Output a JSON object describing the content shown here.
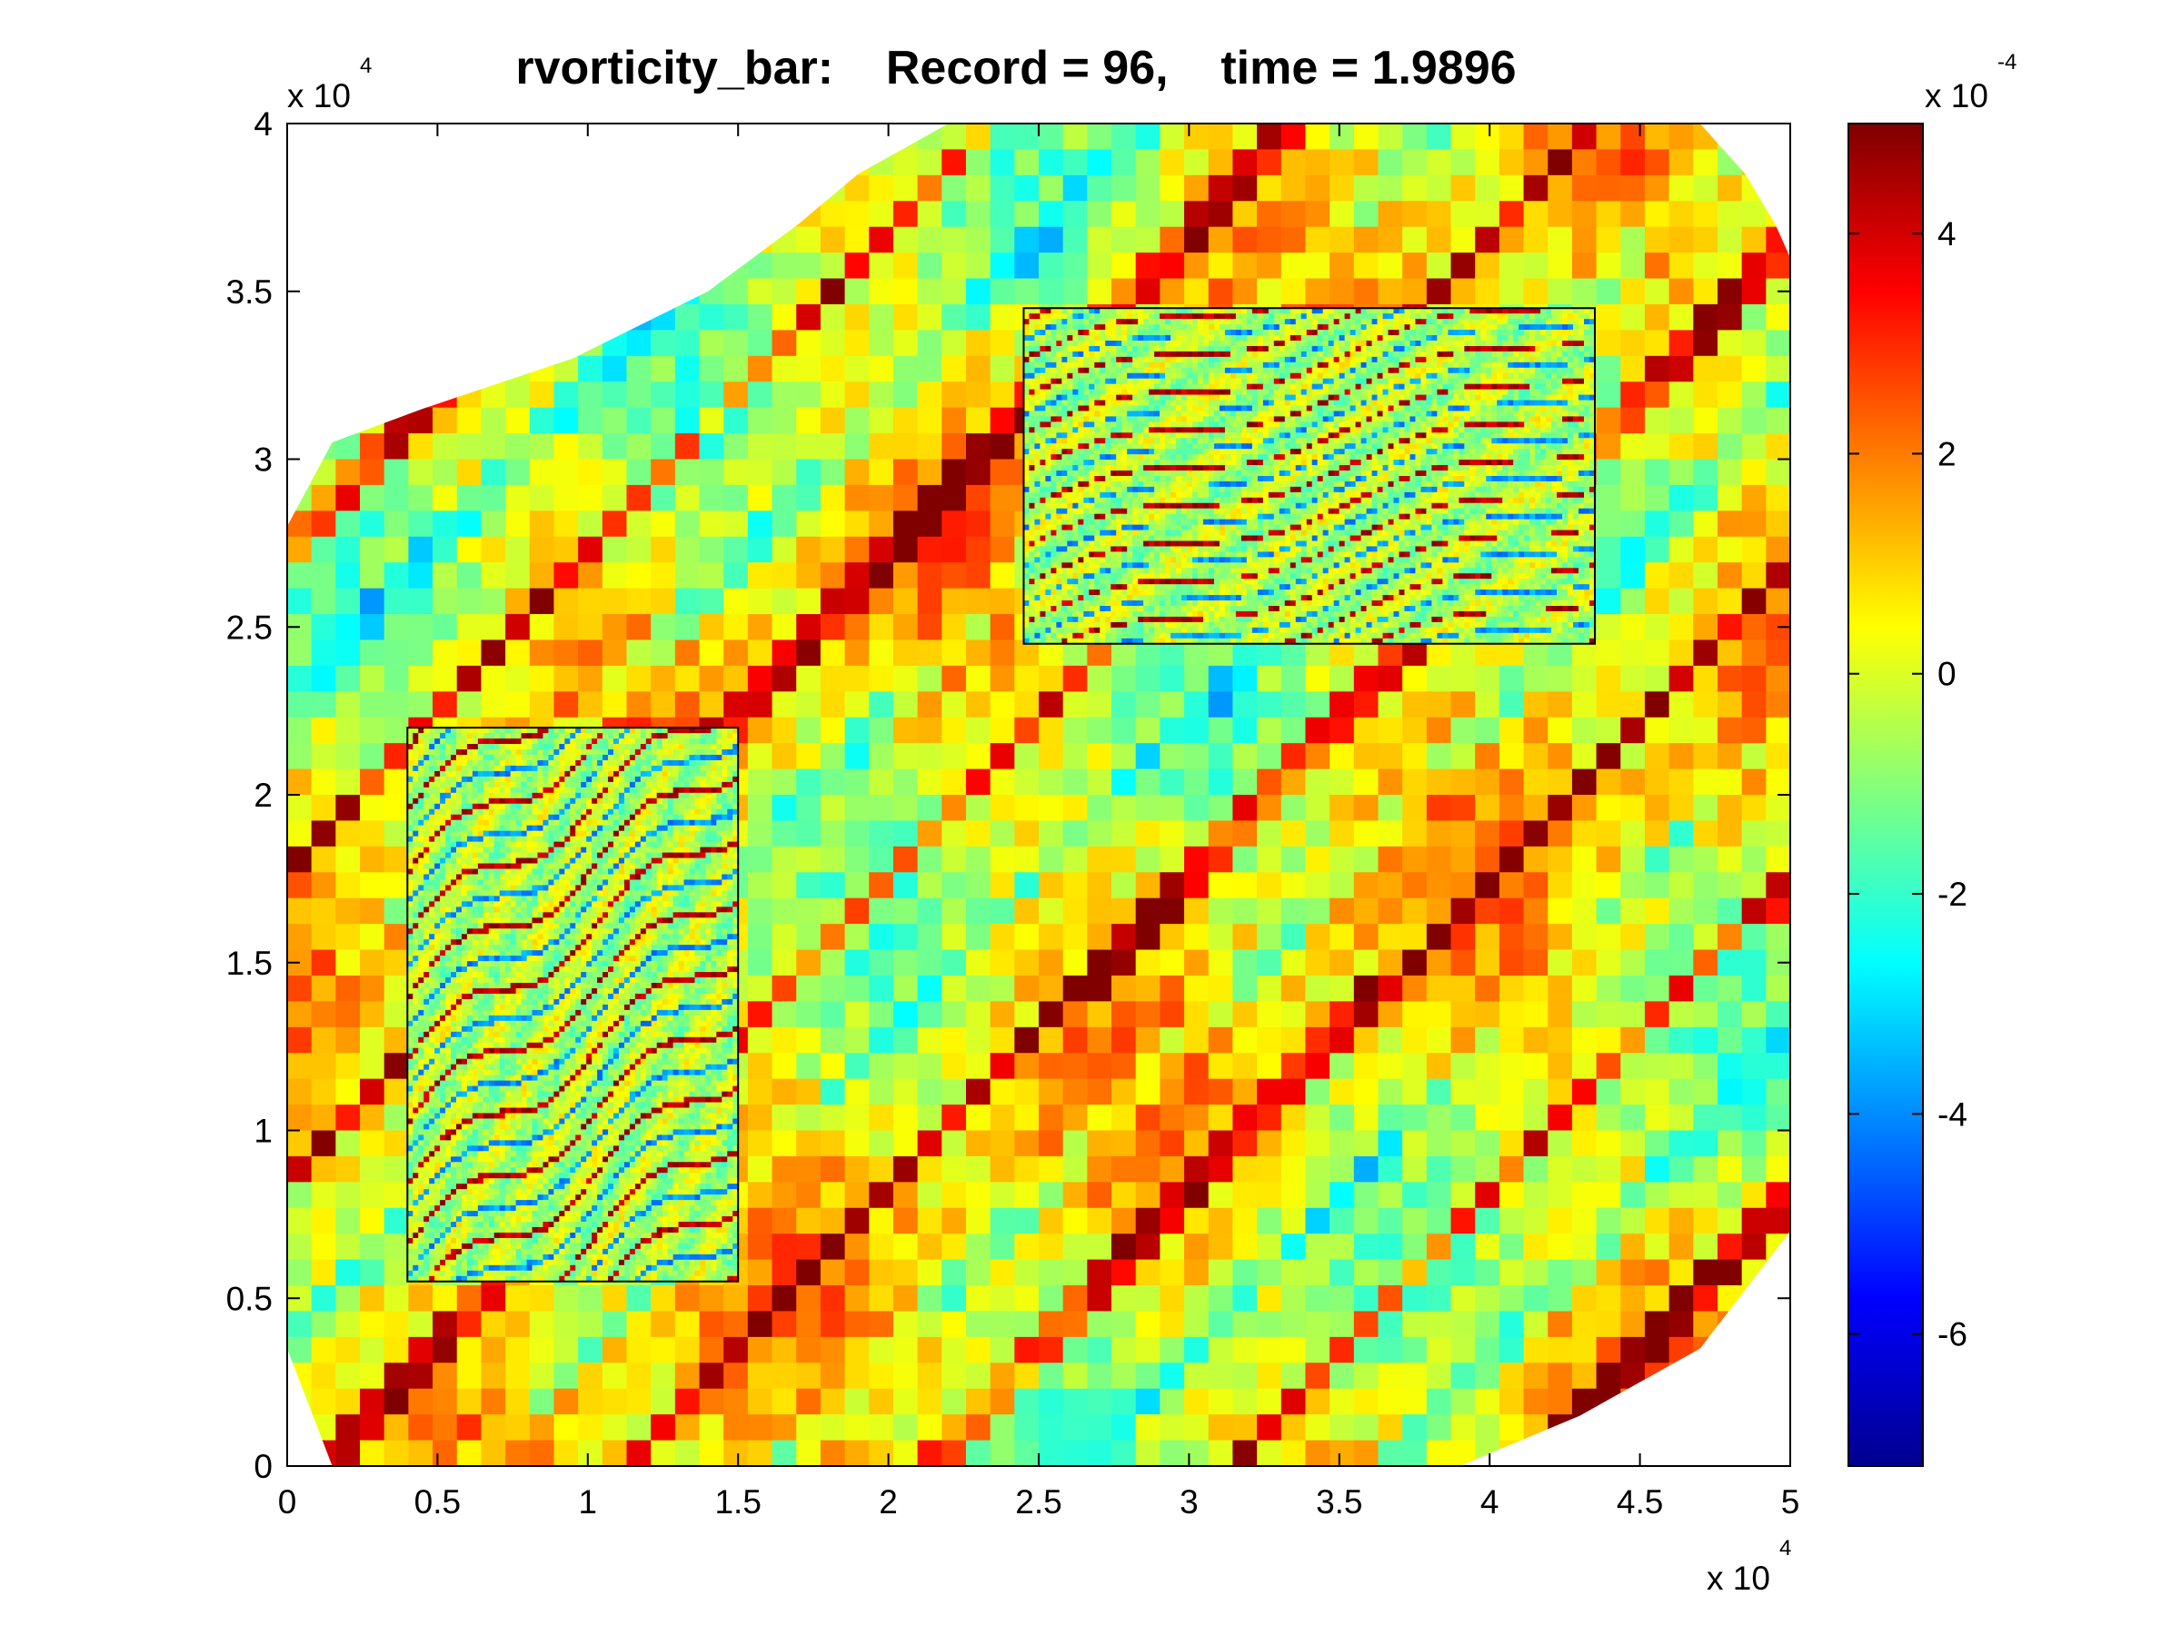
{
  "chart_data": {
    "type": "heatmap",
    "title": "rvorticity_bar:    Record = 96,    time = 1.9896",
    "x_axis": {
      "range": [
        0,
        50000
      ],
      "ticks": [
        0,
        0.5,
        1,
        1.5,
        2,
        2.5,
        3,
        3.5,
        4,
        4.5,
        5
      ],
      "tick_labels": [
        "0",
        "0.5",
        "1",
        "1.5",
        "2",
        "2.5",
        "3",
        "3.5",
        "4",
        "4.5",
        "5"
      ],
      "multiplier_text": "x 10",
      "multiplier_exponent": "4"
    },
    "y_axis": {
      "range": [
        0,
        40000
      ],
      "ticks": [
        0,
        0.5,
        1,
        1.5,
        2,
        2.5,
        3,
        3.5,
        4
      ],
      "tick_labels": [
        "0",
        "0.5",
        "1",
        "1.5",
        "2",
        "2.5",
        "3",
        "3.5",
        "4"
      ],
      "multiplier_text": "x 10",
      "multiplier_exponent": "4"
    },
    "colorbar": {
      "colormap": "jet",
      "range": [
        -0.00072,
        0.0005
      ],
      "ticks": [
        4,
        2,
        0,
        -2,
        -4,
        -6
      ],
      "tick_labels": [
        "4",
        "2",
        "0",
        "-2",
        "-4",
        "-6"
      ],
      "multiplier_text": "x 10",
      "multiplier_exponent": "-4"
    },
    "domain_outline_polygon": [
      [
        0,
        28000
      ],
      [
        1500,
        30500
      ],
      [
        4500,
        31500
      ],
      [
        9500,
        33000
      ],
      [
        14000,
        35000
      ],
      [
        17000,
        37000
      ],
      [
        19000,
        38500
      ],
      [
        22000,
        40000
      ],
      [
        47000,
        40000
      ],
      [
        48500,
        38500
      ],
      [
        49500,
        37000
      ],
      [
        50000,
        36000
      ],
      [
        50000,
        7000
      ],
      [
        47000,
        3500
      ],
      [
        43000,
        1500
      ],
      [
        39000,
        0
      ],
      [
        1500,
        0
      ],
      [
        0,
        3500
      ]
    ],
    "nested_grids": [
      {
        "x": [
          4000,
          15000
        ],
        "y": [
          5500,
          22000
        ]
      },
      {
        "x": [
          24500,
          43500
        ],
        "y": [
          24500,
          34500
        ]
      }
    ],
    "grid": false,
    "legend": "none"
  }
}
